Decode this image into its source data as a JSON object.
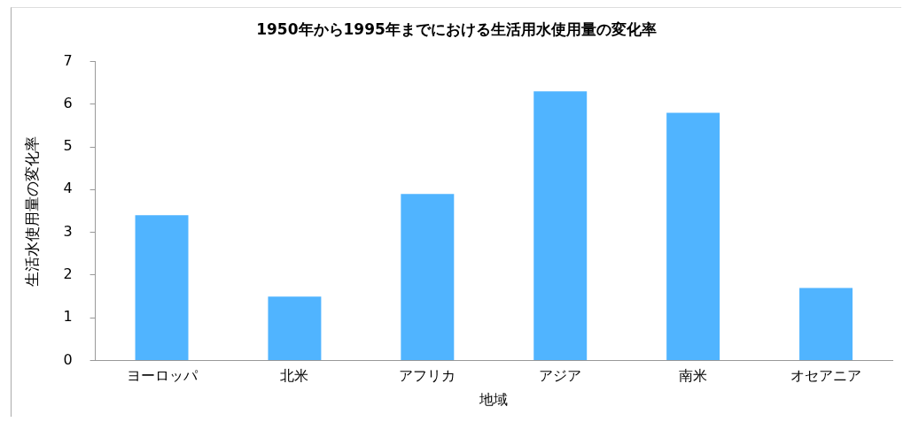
{
  "chart_data": {
    "type": "bar",
    "title": "1950年から1995年までにおける生活用水使用量の変化率",
    "xlabel": "地域",
    "ylabel": "生活水使用量の変化率",
    "categories": [
      "ヨーロッパ",
      "北米",
      "アフリカ",
      "アジア",
      "南米",
      "オセアニア"
    ],
    "values": [
      3.4,
      1.5,
      3.9,
      6.3,
      5.8,
      1.7
    ],
    "color": "#50b4ff",
    "ylim": [
      0,
      7
    ],
    "yticks": [
      0,
      1,
      2,
      3,
      4,
      5,
      6,
      7
    ],
    "grid": false,
    "legend": false
  }
}
